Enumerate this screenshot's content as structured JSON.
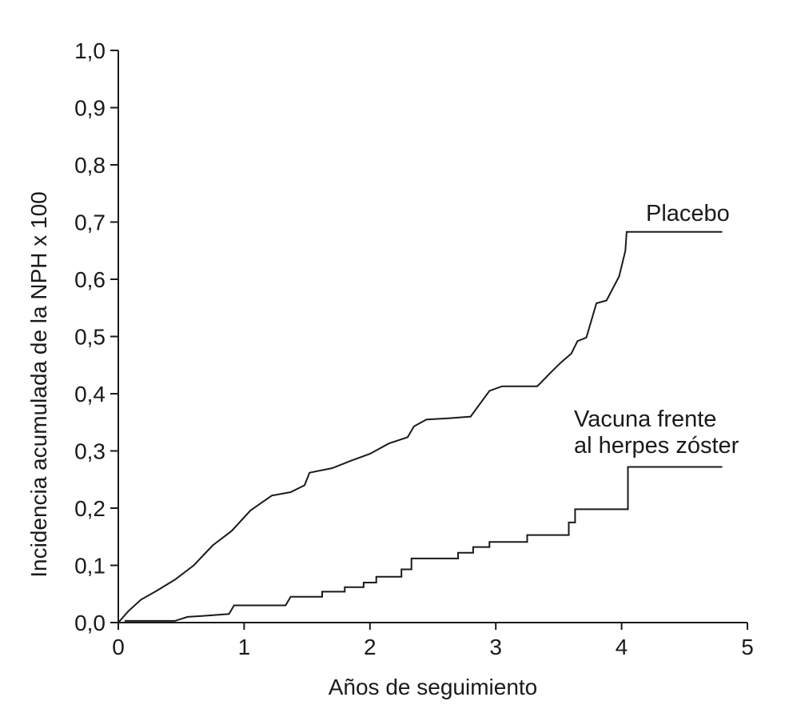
{
  "chart_data": {
    "type": "line",
    "xlabel": "Años de seguimiento",
    "ylabel": "Incidencia acumulada de la NPH x 100",
    "xlim": [
      0,
      5
    ],
    "ylim": [
      0,
      1.0
    ],
    "x_ticks": [
      "0",
      "1",
      "2",
      "3",
      "4",
      "5"
    ],
    "y_ticks": [
      "0,0",
      "0,1",
      "0,2",
      "0,3",
      "0,4",
      "0,5",
      "0,6",
      "0,7",
      "0,8",
      "0,9",
      "1,0"
    ],
    "grid": false,
    "series": [
      {
        "name": "Placebo",
        "label_lines": [
          "Placebo"
        ],
        "color": "#1a1a1a",
        "points": [
          [
            0.0,
            0.0
          ],
          [
            0.08,
            0.02
          ],
          [
            0.18,
            0.04
          ],
          [
            0.3,
            0.055
          ],
          [
            0.45,
            0.075
          ],
          [
            0.6,
            0.1
          ],
          [
            0.75,
            0.135
          ],
          [
            0.9,
            0.16
          ],
          [
            1.05,
            0.196
          ],
          [
            1.22,
            0.222
          ],
          [
            1.37,
            0.228
          ],
          [
            1.48,
            0.24
          ],
          [
            1.52,
            0.262
          ],
          [
            1.7,
            0.27
          ],
          [
            1.85,
            0.283
          ],
          [
            2.0,
            0.295
          ],
          [
            2.15,
            0.313
          ],
          [
            2.3,
            0.324
          ],
          [
            2.35,
            0.343
          ],
          [
            2.45,
            0.355
          ],
          [
            2.62,
            0.357
          ],
          [
            2.8,
            0.36
          ],
          [
            2.95,
            0.405
          ],
          [
            3.05,
            0.413
          ],
          [
            3.33,
            0.413
          ],
          [
            3.45,
            0.44
          ],
          [
            3.52,
            0.455
          ],
          [
            3.6,
            0.47
          ],
          [
            3.65,
            0.492
          ],
          [
            3.72,
            0.498
          ],
          [
            3.8,
            0.558
          ],
          [
            3.88,
            0.563
          ],
          [
            3.98,
            0.605
          ],
          [
            4.03,
            0.65
          ],
          [
            4.04,
            0.683
          ],
          [
            4.8,
            0.683
          ]
        ]
      },
      {
        "name": "Vacuna frente al herpes zóster",
        "label_lines": [
          "Vacuna frente",
          "al herpes zóster"
        ],
        "color": "#1a1a1a",
        "points": [
          [
            0.05,
            0.003
          ],
          [
            0.45,
            0.003
          ],
          [
            0.55,
            0.01
          ],
          [
            0.7,
            0.012
          ],
          [
            0.88,
            0.015
          ],
          [
            0.92,
            0.03
          ],
          [
            1.33,
            0.03
          ],
          [
            1.37,
            0.045
          ],
          [
            1.62,
            0.045
          ],
          [
            1.62,
            0.054
          ],
          [
            1.8,
            0.054
          ],
          [
            1.8,
            0.062
          ],
          [
            1.95,
            0.062
          ],
          [
            1.95,
            0.07
          ],
          [
            2.05,
            0.07
          ],
          [
            2.05,
            0.08
          ],
          [
            2.25,
            0.08
          ],
          [
            2.25,
            0.093
          ],
          [
            2.33,
            0.093
          ],
          [
            2.33,
            0.112
          ],
          [
            2.7,
            0.112
          ],
          [
            2.7,
            0.122
          ],
          [
            2.82,
            0.122
          ],
          [
            2.82,
            0.132
          ],
          [
            2.95,
            0.132
          ],
          [
            2.95,
            0.141
          ],
          [
            3.25,
            0.141
          ],
          [
            3.25,
            0.153
          ],
          [
            3.58,
            0.153
          ],
          [
            3.58,
            0.175
          ],
          [
            3.63,
            0.175
          ],
          [
            3.63,
            0.198
          ],
          [
            4.05,
            0.198
          ],
          [
            4.05,
            0.272
          ],
          [
            4.8,
            0.272
          ]
        ]
      }
    ]
  }
}
